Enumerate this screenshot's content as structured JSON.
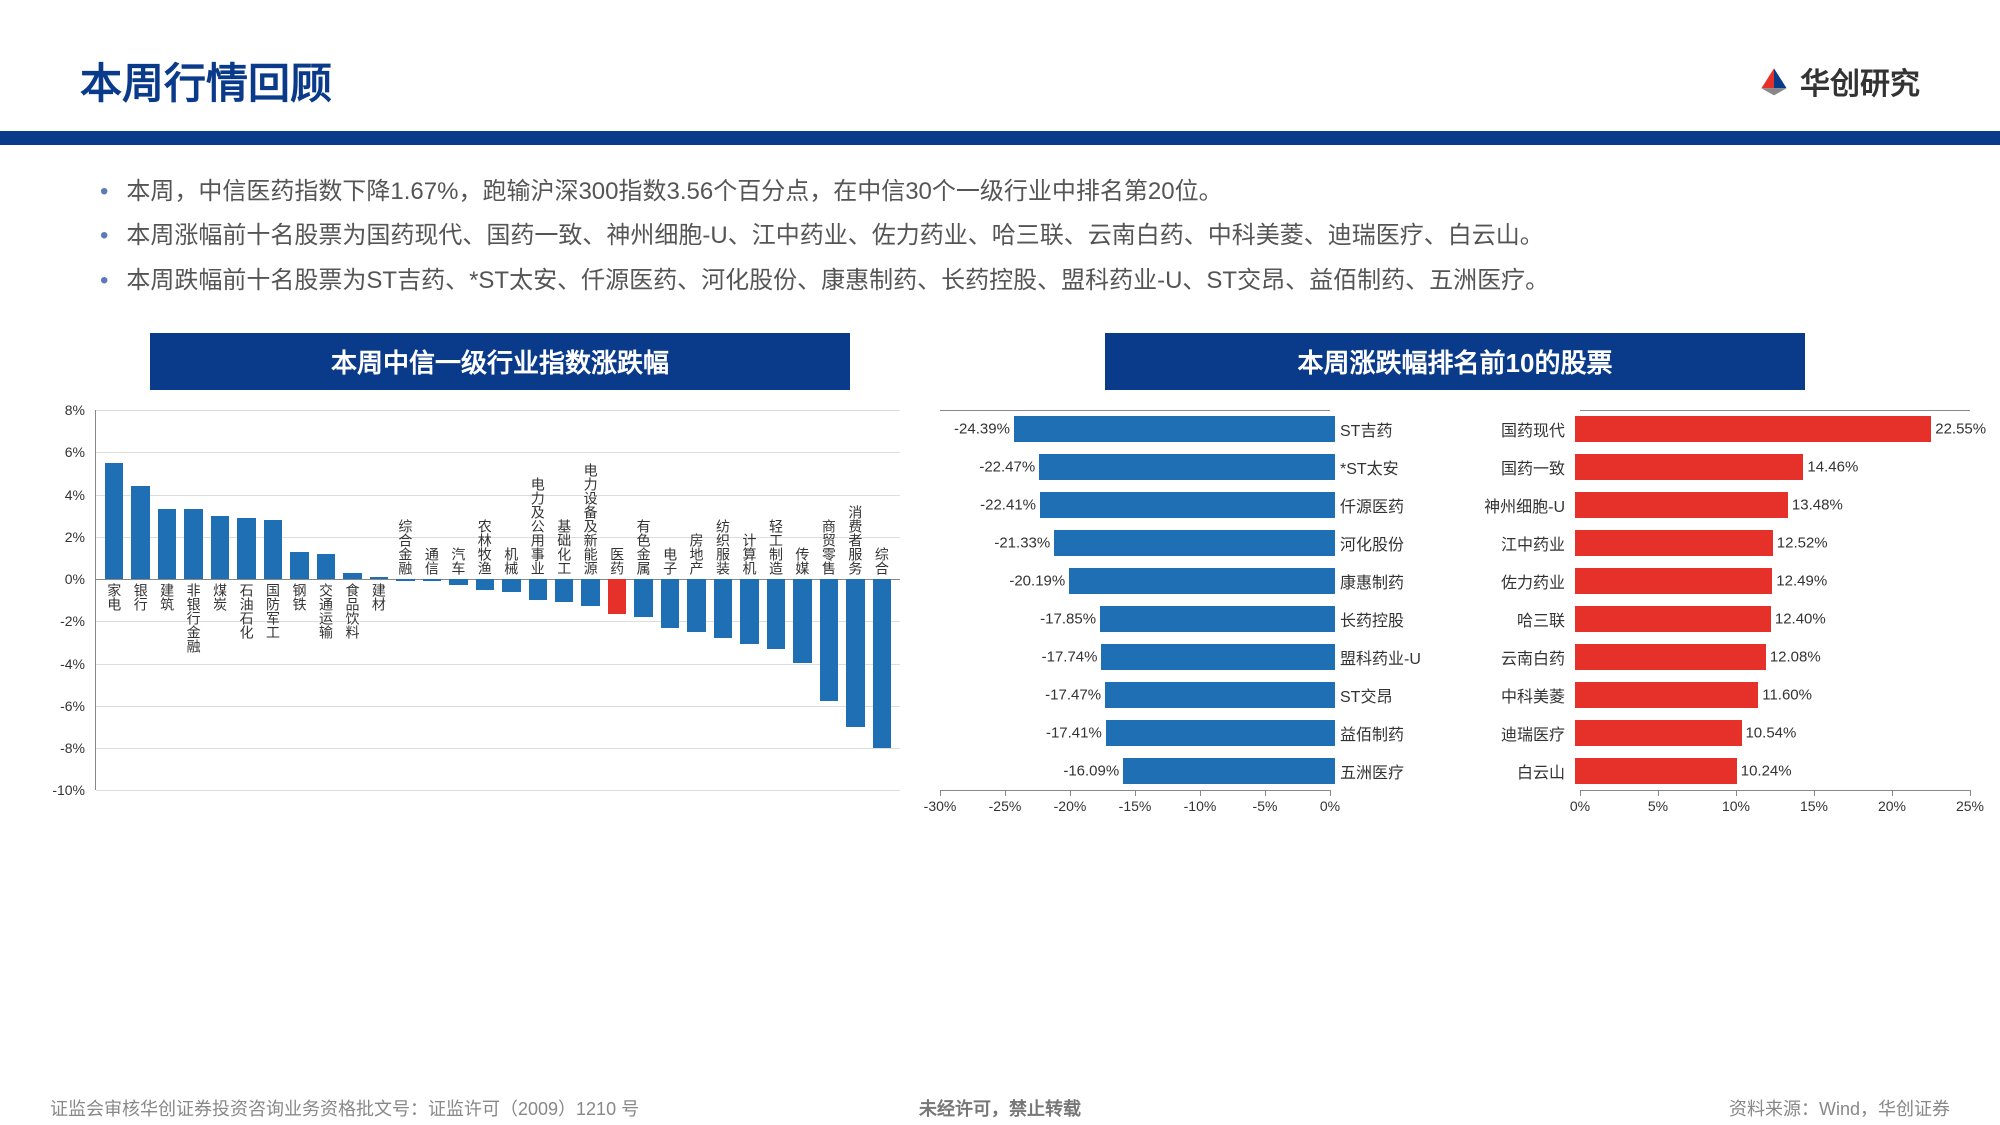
{
  "header": {
    "title": "本周行情回顾",
    "logo_text": "华创研究"
  },
  "bullets": [
    "本周，中信医药指数下降1.67%，跑输沪深300指数3.56个百分点，在中信30个一级行业中排名第20位。",
    "本周涨幅前十名股票为国药现代、国药一致、神州细胞-U、江中药业、佐力药业、哈三联、云南白药、中科美菱、迪瑞医疗、白云山。",
    "本周跌幅前十名股票为ST吉药、*ST太安、仟源医药、河化股份、康惠制药、长药控股、盟科药业-U、ST交昂、益佰制药、五洲医疗。"
  ],
  "chart_left": {
    "title": "本周中信一级行业指数涨跌幅",
    "y_min": -10,
    "y_max": 8,
    "y_step": 2,
    "bar_color": "#1f6fb5",
    "highlight_color": "#e6302a",
    "bg": "#ffffff",
    "grid": "#dddddd",
    "categories": [
      "家电",
      "银行",
      "建筑",
      "非银行金融",
      "煤炭",
      "石油石化",
      "国防军工",
      "钢铁",
      "交通运输",
      "食品饮料",
      "建材",
      "综合金融",
      "通信",
      "汽车",
      "农林牧渔",
      "机械",
      "电力及公用事业",
      "基础化工",
      "电力设备及新能源",
      "医药",
      "有色金属",
      "电子",
      "房地产",
      "纺织服装",
      "计算机",
      "轻工制造",
      "传媒",
      "商贸零售",
      "消费者服务",
      "综合"
    ],
    "values": [
      5.5,
      4.4,
      3.3,
      3.3,
      3.0,
      2.9,
      2.8,
      1.3,
      1.2,
      0.3,
      0.1,
      -0.1,
      -0.1,
      -0.3,
      -0.5,
      -0.6,
      -1.0,
      -1.1,
      -1.3,
      -1.67,
      -1.8,
      -2.3,
      -2.5,
      -2.8,
      -3.1,
      -3.3,
      -4.0,
      -5.8,
      -7.0,
      -8.0
    ],
    "highlight_index": 19
  },
  "chart_right": {
    "title": "本周涨跌幅排名前10的股票",
    "losers": {
      "x_min": -30,
      "x_max": 0,
      "x_step": 5,
      "bar_color": "#1f6fb5",
      "items": [
        {
          "label": "ST吉药",
          "value": -24.39,
          "text": "-24.39%"
        },
        {
          "label": "*ST太安",
          "value": -22.47,
          "text": "-22.47%"
        },
        {
          "label": "仟源医药",
          "value": -22.41,
          "text": "-22.41%"
        },
        {
          "label": "河化股份",
          "value": -21.33,
          "text": "-21.33%"
        },
        {
          "label": "康惠制药",
          "value": -20.19,
          "text": "-20.19%"
        },
        {
          "label": "长药控股",
          "value": -17.85,
          "text": "-17.85%"
        },
        {
          "label": "盟科药业-U",
          "value": -17.74,
          "text": "-17.74%"
        },
        {
          "label": "ST交昂",
          "value": -17.47,
          "text": "-17.47%"
        },
        {
          "label": "益佰制药",
          "value": -17.41,
          "text": "-17.41%"
        },
        {
          "label": "五洲医疗",
          "value": -16.09,
          "text": "-16.09%"
        }
      ]
    },
    "gainers": {
      "x_min": 0,
      "x_max": 25,
      "x_step": 5,
      "bar_color": "#e6302a",
      "items": [
        {
          "label": "国药现代",
          "value": 22.55,
          "text": "22.55%"
        },
        {
          "label": "国药一致",
          "value": 14.46,
          "text": "14.46%"
        },
        {
          "label": "神州细胞-U",
          "value": 13.48,
          "text": "13.48%"
        },
        {
          "label": "江中药业",
          "value": 12.52,
          "text": "12.52%"
        },
        {
          "label": "佐力药业",
          "value": 12.49,
          "text": "12.49%"
        },
        {
          "label": "哈三联",
          "value": 12.4,
          "text": "12.40%"
        },
        {
          "label": "云南白药",
          "value": 12.08,
          "text": "12.08%"
        },
        {
          "label": "中科美菱",
          "value": 11.6,
          "text": "11.60%"
        },
        {
          "label": "迪瑞医疗",
          "value": 10.54,
          "text": "10.54%"
        },
        {
          "label": "白云山",
          "value": 10.24,
          "text": "10.24%"
        }
      ]
    }
  },
  "footer": {
    "left": "证监会审核华创证券投资咨询业务资格批文号：证监许可（2009）1210 号",
    "center": "未经许可，禁止转载",
    "right": "资料来源：Wind，华创证券"
  }
}
